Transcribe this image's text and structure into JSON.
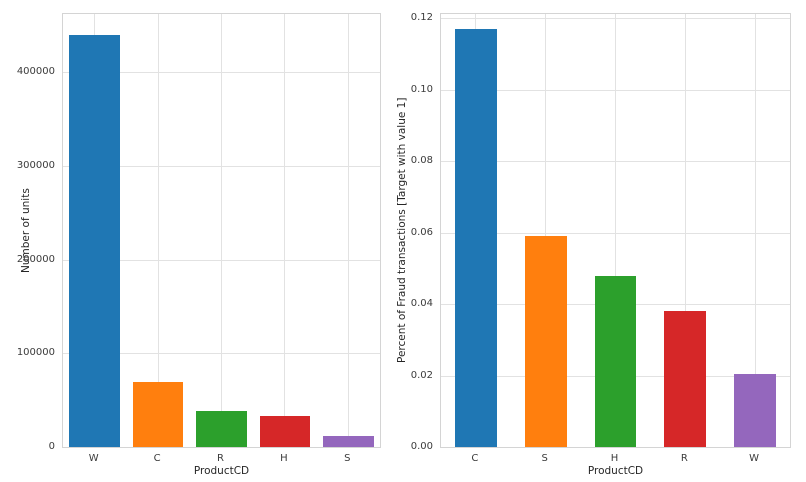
{
  "style": {
    "background": "#ffffff",
    "grid_color": "#e2e2e2",
    "spine_color": "#d4d4d4",
    "text_color": "#262626",
    "tick_text_color": "#3b3b3b"
  },
  "chart_data": [
    {
      "type": "bar",
      "title": "",
      "xlabel": "ProductCD",
      "ylabel": "Number of units",
      "categories": [
        "W",
        "C",
        "R",
        "H",
        "S"
      ],
      "values": [
        440000,
        69000,
        38000,
        33000,
        12000
      ],
      "bar_colors": [
        "#1f77b4",
        "#ff7f0e",
        "#2ca02c",
        "#d62728",
        "#9467bd"
      ],
      "ylim": [
        0,
        462000
      ],
      "yticks": [
        0,
        100000,
        200000,
        300000,
        400000
      ],
      "ytick_labels": [
        "0",
        "100000",
        "200000",
        "300000",
        "400000"
      ],
      "grid": true,
      "legend": false,
      "bar_width": 0.8
    },
    {
      "type": "bar",
      "title": "",
      "xlabel": "ProductCD",
      "ylabel": "Percent of Fraud transactions [Target with value 1]",
      "categories": [
        "C",
        "S",
        "H",
        "R",
        "W"
      ],
      "values": [
        0.117,
        0.059,
        0.048,
        0.038,
        0.0205
      ],
      "bar_colors": [
        "#1f77b4",
        "#ff7f0e",
        "#2ca02c",
        "#d62728",
        "#9467bd"
      ],
      "ylim": [
        0,
        0.1212
      ],
      "yticks": [
        0.0,
        0.02,
        0.04,
        0.06,
        0.08,
        0.1,
        0.12
      ],
      "ytick_labels": [
        "0.00",
        "0.02",
        "0.04",
        "0.06",
        "0.08",
        "0.10",
        "0.12"
      ],
      "grid": true,
      "legend": false,
      "bar_width": 0.6
    }
  ]
}
